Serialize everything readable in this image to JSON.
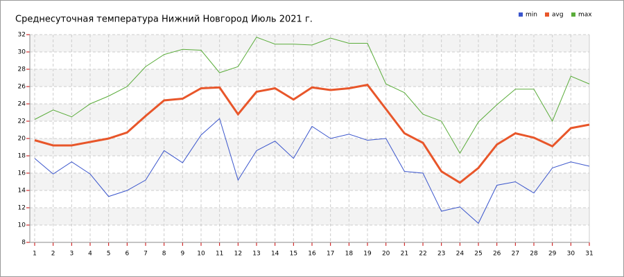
{
  "chart_data": {
    "type": "line",
    "title": "Среднесуточная температура Нижний Новгород  Июль 2021 г.",
    "x": [
      1,
      2,
      3,
      4,
      5,
      6,
      7,
      8,
      9,
      10,
      11,
      12,
      13,
      14,
      15,
      16,
      17,
      18,
      19,
      20,
      21,
      22,
      23,
      24,
      25,
      26,
      27,
      28,
      29,
      30,
      31
    ],
    "series": [
      {
        "name": "min",
        "color": "#3a55cc",
        "values": [
          17.7,
          15.9,
          17.3,
          15.9,
          13.3,
          14,
          15.2,
          18.6,
          17.2,
          20.4,
          22.3,
          15.2,
          18.6,
          19.7,
          17.7,
          21.4,
          20,
          20.5,
          19.8,
          20,
          16.2,
          16,
          11.6,
          12.1,
          10.2,
          14.6,
          15,
          13.7,
          16.6,
          17.3,
          16.8
        ]
      },
      {
        "name": "avg",
        "color": "#e8562a",
        "values": [
          19.8,
          19.2,
          19.2,
          19.6,
          20,
          20.7,
          22.6,
          24.4,
          24.6,
          25.8,
          25.9,
          22.8,
          25.4,
          25.8,
          24.5,
          25.9,
          25.6,
          25.8,
          26.2,
          23.4,
          20.6,
          19.5,
          16.2,
          14.9,
          16.6,
          19.3,
          20.6,
          20.1,
          19.1,
          21.2,
          21.6
        ]
      },
      {
        "name": "max",
        "color": "#5aac3a",
        "values": [
          22.2,
          23.3,
          22.5,
          24,
          24.9,
          26,
          28.3,
          29.7,
          30.3,
          30.2,
          27.6,
          28.3,
          31.7,
          30.9,
          30.9,
          30.8,
          31.6,
          31,
          31,
          26.3,
          25.3,
          22.8,
          22,
          18.3,
          21.9,
          23.9,
          25.7,
          25.7,
          22,
          27.2,
          26.3
        ]
      }
    ],
    "xlim": [
      1,
      31
    ],
    "xticks": [
      1,
      2,
      3,
      4,
      5,
      6,
      7,
      8,
      9,
      10,
      11,
      12,
      13,
      14,
      15,
      16,
      17,
      18,
      19,
      20,
      21,
      22,
      23,
      24,
      25,
      26,
      27,
      28,
      29,
      30,
      31
    ],
    "ylim": [
      8,
      32
    ],
    "yticks": [
      8,
      10,
      12,
      14,
      16,
      18,
      20,
      22,
      24,
      26,
      28,
      30,
      32
    ],
    "grid": true,
    "legend": "top-right"
  }
}
